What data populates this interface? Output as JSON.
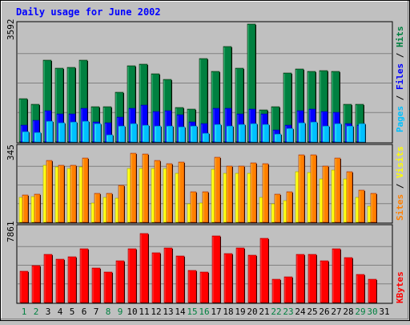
{
  "title": "Daily usage for June 2002",
  "colors": {
    "background": "#c0c0c0",
    "title": "#0000ff",
    "gridline": "#808080",
    "pages": "#00c0ff",
    "files": "#0000ff",
    "hits": "#008040",
    "sites": "#ff8000",
    "visits": "#ffff00",
    "kbytes": "#ff0000",
    "weekday_label": "#000000",
    "weekend_label": "#008040"
  },
  "chart_data": [
    {
      "type": "bar",
      "panel": "hits-files-pages",
      "ymax_label": "3592",
      "ylim": [
        0,
        3592
      ],
      "legend": [
        {
          "name": "Pages",
          "color": "#00c0ff"
        },
        {
          "name": "Files",
          "color": "#0000ff"
        },
        {
          "name": "Hits",
          "color": "#008040"
        }
      ],
      "legend_separator": "/",
      "categories": [
        "1",
        "2",
        "3",
        "4",
        "5",
        "6",
        "7",
        "8",
        "9",
        "10",
        "11",
        "12",
        "13",
        "14",
        "15",
        "16",
        "17",
        "18",
        "19",
        "20",
        "21",
        "22",
        "23",
        "24",
        "25",
        "26",
        "27",
        "28",
        "29",
        "30",
        "31"
      ],
      "series": [
        {
          "name": "Hits",
          "values": [
            1310,
            1140,
            2490,
            2240,
            2270,
            2490,
            1070,
            1070,
            1520,
            2330,
            2360,
            2070,
            1910,
            1060,
            1010,
            2530,
            2140,
            2900,
            2250,
            3590,
            970,
            1070,
            2110,
            2220,
            2140,
            2180,
            2140,
            1140,
            1140,
            0,
            0
          ]
        },
        {
          "name": "Files",
          "values": [
            520,
            650,
            950,
            860,
            860,
            1030,
            620,
            580,
            760,
            1030,
            1130,
            930,
            960,
            830,
            600,
            560,
            1030,
            1030,
            860,
            1000,
            860,
            360,
            520,
            950,
            1000,
            940,
            910,
            550,
            520,
            0,
            0
          ]
        },
        {
          "name": "Pages",
          "values": [
            310,
            290,
            640,
            580,
            600,
            640,
            550,
            210,
            500,
            560,
            520,
            500,
            500,
            460,
            500,
            280,
            540,
            490,
            530,
            560,
            530,
            250,
            410,
            580,
            610,
            500,
            550,
            490,
            550,
            0,
            0
          ]
        }
      ]
    },
    {
      "type": "bar",
      "panel": "visits-sites",
      "ymax_label": "345",
      "ylim": [
        0,
        345
      ],
      "legend": [
        {
          "name": "Sites",
          "color": "#ff8000"
        },
        {
          "name": "Visits",
          "color": "#ffff00"
        }
      ],
      "legend_separator": "/",
      "categories": [
        "1",
        "2",
        "3",
        "4",
        "5",
        "6",
        "7",
        "8",
        "9",
        "10",
        "11",
        "12",
        "13",
        "14",
        "15",
        "16",
        "17",
        "18",
        "19",
        "20",
        "21",
        "22",
        "23",
        "24",
        "25",
        "26",
        "27",
        "28",
        "29",
        "30",
        "31"
      ],
      "series": [
        {
          "name": "Visits",
          "values": [
            115,
            120,
            265,
            255,
            250,
            255,
            90,
            115,
            110,
            250,
            250,
            250,
            250,
            225,
            85,
            90,
            245,
            225,
            225,
            225,
            115,
            85,
            100,
            235,
            230,
            200,
            240,
            200,
            115,
            75,
            0
          ]
        },
        {
          "name": "Sites",
          "values": [
            125,
            130,
            285,
            265,
            265,
            295,
            135,
            135,
            170,
            320,
            315,
            285,
            270,
            280,
            140,
            140,
            300,
            260,
            260,
            275,
            270,
            130,
            140,
            310,
            310,
            260,
            295,
            235,
            150,
            135,
            0
          ]
        }
      ]
    },
    {
      "type": "bar",
      "panel": "kbytes",
      "ymax_label": "7861",
      "ylim": [
        0,
        7861
      ],
      "legend": [
        {
          "name": "KBytes",
          "color": "#ff0000"
        }
      ],
      "categories": [
        "1",
        "2",
        "3",
        "4",
        "5",
        "6",
        "7",
        "8",
        "9",
        "10",
        "11",
        "12",
        "13",
        "14",
        "15",
        "16",
        "17",
        "18",
        "19",
        "20",
        "21",
        "22",
        "23",
        "24",
        "25",
        "26",
        "27",
        "28",
        "29",
        "30",
        "31"
      ],
      "series": [
        {
          "name": "KBytes",
          "values": [
            3280,
            3900,
            5050,
            4600,
            4840,
            5660,
            3630,
            3180,
            4420,
            5660,
            7250,
            5210,
            5780,
            4880,
            3360,
            3240,
            7040,
            5120,
            5780,
            4980,
            6720,
            2440,
            2680,
            5090,
            5050,
            4420,
            5650,
            4760,
            2920,
            2440,
            0
          ]
        }
      ]
    }
  ],
  "x_axis": {
    "labels": [
      "1",
      "2",
      "3",
      "4",
      "5",
      "6",
      "7",
      "8",
      "9",
      "10",
      "11",
      "12",
      "13",
      "14",
      "15",
      "16",
      "17",
      "18",
      "19",
      "20",
      "21",
      "22",
      "23",
      "24",
      "25",
      "26",
      "27",
      "28",
      "29",
      "30",
      "31"
    ],
    "weekend_days": [
      "1",
      "2",
      "8",
      "9",
      "15",
      "16",
      "22",
      "23",
      "29",
      "30"
    ]
  }
}
